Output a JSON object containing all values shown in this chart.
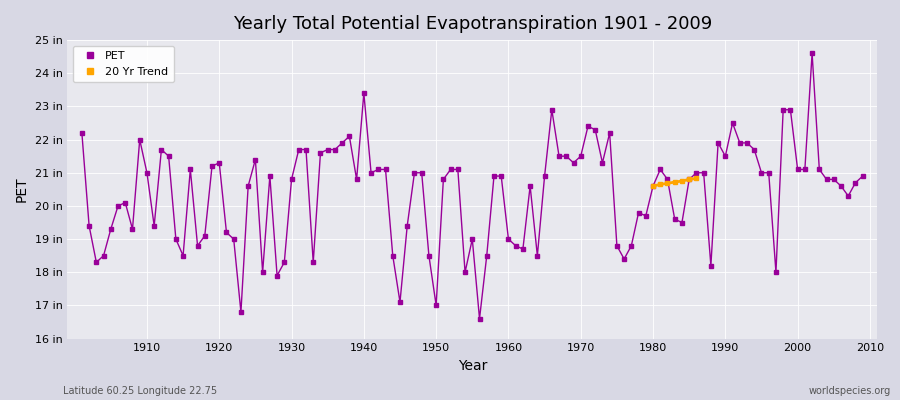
{
  "title": "Yearly Total Potential Evapotranspiration 1901 - 2009",
  "xlabel": "Year",
  "ylabel": "PET",
  "subtitle_left": "Latitude 60.25 Longitude 22.75",
  "subtitle_right": "worldspecies.org",
  "ylim": [
    16,
    25
  ],
  "ytick_labels": [
    "16 in",
    "17 in",
    "18 in",
    "19 in",
    "20 in",
    "21 in",
    "22 in",
    "23 in",
    "24 in",
    "25 in"
  ],
  "ytick_vals": [
    16,
    17,
    18,
    19,
    20,
    21,
    22,
    23,
    24,
    25
  ],
  "pet_color": "#990099",
  "trend_color": "#FFA500",
  "bg_color": "#e8e8ee",
  "plot_bg": "#e8e8ee",
  "years": [
    1901,
    1902,
    1903,
    1904,
    1905,
    1906,
    1907,
    1908,
    1909,
    1910,
    1911,
    1912,
    1913,
    1914,
    1915,
    1916,
    1917,
    1918,
    1919,
    1920,
    1921,
    1922,
    1923,
    1924,
    1925,
    1926,
    1927,
    1928,
    1929,
    1930,
    1931,
    1932,
    1933,
    1934,
    1935,
    1936,
    1937,
    1938,
    1939,
    1940,
    1941,
    1942,
    1943,
    1944,
    1945,
    1946,
    1947,
    1948,
    1949,
    1950,
    1951,
    1952,
    1953,
    1954,
    1955,
    1956,
    1957,
    1958,
    1959,
    1960,
    1961,
    1962,
    1963,
    1964,
    1965,
    1966,
    1967,
    1968,
    1969,
    1970,
    1971,
    1972,
    1973,
    1974,
    1975,
    1976,
    1977,
    1978,
    1979,
    1980,
    1981,
    1982,
    1983,
    1984,
    1985,
    1986,
    1987,
    1988,
    1989,
    1990,
    1991,
    1992,
    1993,
    1994,
    1995,
    1996,
    1997,
    1998,
    1999,
    2000,
    2001,
    2002,
    2003,
    2004,
    2005,
    2006,
    2007,
    2008,
    2009
  ],
  "pet": [
    22.2,
    19.4,
    18.3,
    18.5,
    19.3,
    20.0,
    20.1,
    19.3,
    22.0,
    21.0,
    19.4,
    21.7,
    21.5,
    19.0,
    18.5,
    21.1,
    18.8,
    19.1,
    21.2,
    21.3,
    19.2,
    19.0,
    16.8,
    20.6,
    21.4,
    18.0,
    20.9,
    17.9,
    18.3,
    20.8,
    21.7,
    21.7,
    18.3,
    21.6,
    21.7,
    21.7,
    21.9,
    22.1,
    20.8,
    23.4,
    21.0,
    21.1,
    21.1,
    18.5,
    17.1,
    19.4,
    21.0,
    21.0,
    18.5,
    17.0,
    20.8,
    21.1,
    21.1,
    18.0,
    19.0,
    16.6,
    18.5,
    20.9,
    20.9,
    19.0,
    18.8,
    18.7,
    20.6,
    18.5,
    20.9,
    22.9,
    21.5,
    21.5,
    21.3,
    21.5,
    22.4,
    22.3,
    21.3,
    22.2,
    18.8,
    18.4,
    18.8,
    19.8,
    19.7,
    20.6,
    21.1,
    20.8,
    19.6,
    19.5,
    20.8,
    21.0,
    21.0,
    18.2,
    21.9,
    21.5,
    22.5,
    21.9,
    21.9,
    21.7,
    21.0,
    21.0,
    18.0,
    22.9,
    22.9,
    21.1,
    21.1,
    24.6,
    21.1,
    20.8,
    20.8,
    20.6,
    20.3,
    20.7,
    20.9
  ],
  "trend_years": [
    1980,
    1981,
    1982,
    1983,
    1984,
    1985,
    1986
  ],
  "trend_vals": [
    20.6,
    20.65,
    20.68,
    20.72,
    20.75,
    20.8,
    20.83
  ]
}
